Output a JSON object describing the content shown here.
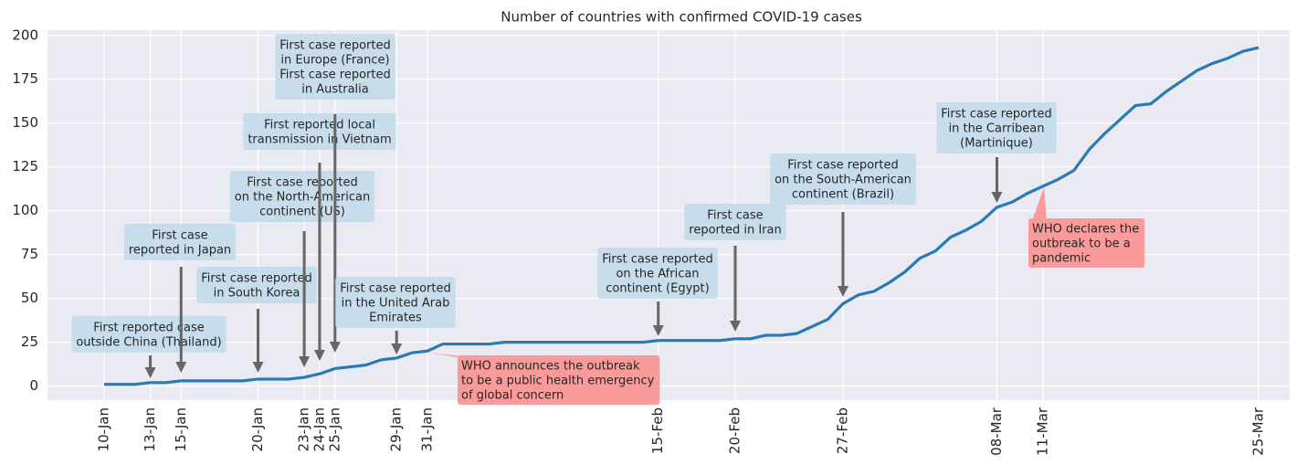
{
  "chart_data": {
    "type": "line",
    "title": "Number of countries with confirmed COVID-19 cases",
    "categories": [
      "10-Jan",
      null,
      null,
      "13-Jan",
      null,
      "15-Jan",
      null,
      null,
      null,
      null,
      "20-Jan",
      null,
      null,
      "23-Jan",
      "24-Jan",
      "25-Jan",
      null,
      null,
      null,
      "29-Jan",
      null,
      "31-Jan",
      null,
      null,
      null,
      null,
      null,
      null,
      null,
      null,
      null,
      null,
      null,
      null,
      null,
      null,
      "15-Feb",
      null,
      null,
      null,
      null,
      "20-Feb",
      null,
      null,
      null,
      null,
      null,
      null,
      "27-Feb",
      null,
      null,
      null,
      null,
      null,
      null,
      null,
      null,
      null,
      "08-Mar",
      null,
      null,
      "11-Mar",
      null,
      null,
      null,
      null,
      null,
      null,
      null,
      null,
      null,
      null,
      null,
      null,
      null,
      "25-Mar"
    ],
    "values": [
      1,
      1,
      1,
      2,
      2,
      3,
      3,
      3,
      3,
      3,
      4,
      4,
      4,
      5,
      7,
      10,
      11,
      12,
      15,
      16,
      19,
      20,
      24,
      24,
      24,
      24,
      25,
      25,
      25,
      25,
      25,
      25,
      25,
      25,
      25,
      25,
      26,
      26,
      26,
      26,
      26,
      27,
      27,
      29,
      29,
      30,
      34,
      38,
      47,
      52,
      54,
      59,
      65,
      73,
      77,
      85,
      89,
      94,
      102,
      105,
      110,
      114,
      118,
      123,
      135,
      144,
      152,
      160,
      161,
      168,
      174,
      180,
      184,
      187,
      191,
      193
    ],
    "color": "#2a7ab5",
    "ylim": [
      -8,
      203
    ],
    "yticks": [
      0,
      25,
      50,
      75,
      100,
      125,
      150,
      175,
      200
    ],
    "grid": true,
    "annotations": [
      {
        "text": [
          "First reported case",
          "outside China (Thailand)"
        ]
      },
      {
        "text": [
          "First case",
          "reported in Japan"
        ]
      },
      {
        "text": [
          "First case reported",
          "in South Korea"
        ]
      },
      {
        "text": [
          "First case reported",
          "on the North-American",
          "continent (US)"
        ]
      },
      {
        "text": [
          "First reported local",
          "transmission in Vietnam"
        ]
      },
      {
        "text": [
          "First case reported",
          "in Europe (France)",
          "First case reported",
          "in Australia"
        ]
      },
      {
        "text": [
          "First case reported",
          "in the United Arab",
          "Emirates"
        ]
      },
      {
        "text": [
          "First case reported",
          "on the African",
          "continent (Egypt)"
        ]
      },
      {
        "text": [
          "First case",
          "reported in Iran"
        ]
      },
      {
        "text": [
          "First case reported",
          "on the South-American",
          "continent (Brazil)"
        ]
      },
      {
        "text": [
          "First case reported",
          "in the Carribean",
          "(Martinique)"
        ]
      },
      {
        "text": [
          "WHO announces the outbreak",
          "to be a public health emergency",
          "of global concern"
        ]
      },
      {
        "text": [
          "WHO declares the",
          "outbreak to be a",
          "pandemic"
        ]
      }
    ]
  }
}
